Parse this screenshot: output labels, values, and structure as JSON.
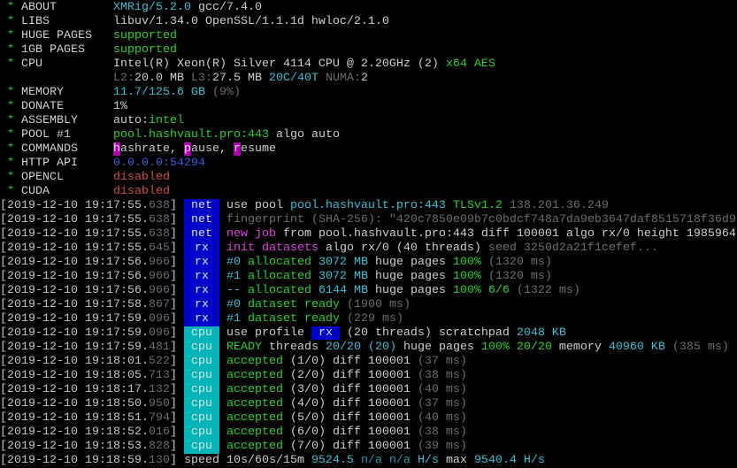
{
  "header": [
    {
      "label": "ABOUT",
      "segs": [
        [
          "XMRig/5.2.0",
          "c"
        ],
        [
          " gcc/7.4.0",
          "w"
        ]
      ]
    },
    {
      "label": "LIBS",
      "segs": [
        [
          "libuv/1.34.0 OpenSSL/1.1.1d hwloc/2.1.0",
          "w"
        ]
      ]
    },
    {
      "label": "HUGE PAGES",
      "segs": [
        [
          "supported",
          "g"
        ]
      ]
    },
    {
      "label": "1GB PAGES",
      "segs": [
        [
          "supported",
          "g"
        ]
      ]
    },
    {
      "label": "CPU",
      "segs": [
        [
          "Intel(R) Xeon(R) Silver 4114 CPU @ 2.20GHz (2) ",
          "w"
        ],
        [
          "x64 AES",
          "g"
        ]
      ]
    },
    {
      "label": "",
      "segs": [
        [
          "L2:",
          "y"
        ],
        [
          "20.0 MB ",
          "w"
        ],
        [
          "L3:",
          "y"
        ],
        [
          "27.5 MB ",
          "w"
        ],
        [
          "20C/40T ",
          "c"
        ],
        [
          "NUMA:",
          "y"
        ],
        [
          "2",
          "w"
        ]
      ]
    },
    {
      "label": "MEMORY",
      "segs": [
        [
          "11.7/125.6 GB ",
          "c"
        ],
        [
          "(9%)",
          "y"
        ]
      ]
    },
    {
      "label": "DONATE",
      "segs": [
        [
          "1%",
          "w"
        ]
      ]
    },
    {
      "label": "ASSEMBLY",
      "segs": [
        [
          "auto:",
          "w"
        ],
        [
          "intel",
          "g"
        ]
      ]
    },
    {
      "label": "POOL #1",
      "segs": [
        [
          "pool.hashvault.pro:443 ",
          "g"
        ],
        [
          "algo auto",
          "w"
        ]
      ]
    },
    {
      "label": "COMMANDS",
      "segs": [
        [
          "h",
          "hm"
        ],
        [
          "ashrate, ",
          "w"
        ],
        [
          "p",
          "hm"
        ],
        [
          "ause, ",
          "w"
        ],
        [
          "r",
          "hm"
        ],
        [
          "esume",
          "w"
        ]
      ]
    },
    {
      "label": "HTTP API",
      "segs": [
        [
          "0.0.0.0:54294",
          "b"
        ]
      ]
    },
    {
      "label": "OPENCL",
      "segs": [
        [
          "disabled",
          "r"
        ]
      ]
    },
    {
      "label": "CUDA",
      "segs": [
        [
          "disabled",
          "r"
        ]
      ]
    }
  ],
  "log": [
    {
      "ts": "2019-12-10 19:17:55",
      "ms": "638",
      "tag": "net",
      "segs": [
        [
          "use pool ",
          "w"
        ],
        [
          "pool.hashvault.pro:443 ",
          "c"
        ],
        [
          "TLSv1.2 ",
          "g"
        ],
        [
          "138.201.36.249",
          "y"
        ]
      ]
    },
    {
      "ts": "2019-12-10 19:17:55",
      "ms": "638",
      "tag": "net",
      "segs": [
        [
          "fingerprint (SHA-256): \"420c7850e09b7c0bdcf748a7da9eb3647daf8515718f36d9",
          "y"
        ]
      ]
    },
    {
      "ts": "2019-12-10 19:17:55",
      "ms": "638",
      "tag": "net",
      "segs": [
        [
          "new job",
          "m"
        ],
        [
          " from pool.hashvault.pro:443 diff 100001 algo rx/0 height 1985964",
          "w"
        ]
      ]
    },
    {
      "ts": "2019-12-10 19:17:55",
      "ms": "645",
      "tag": "rx",
      "segs": [
        [
          "init datasets",
          "m"
        ],
        [
          " algo rx/0 (40 threads) ",
          "w"
        ],
        [
          "seed 3250d2a21f1cefef...",
          "y"
        ]
      ]
    },
    {
      "ts": "2019-12-10 19:17:56",
      "ms": "966",
      "tag": "rx",
      "segs": [
        [
          "#0 ",
          "c"
        ],
        [
          "allocated ",
          "g"
        ],
        [
          "3072 MB ",
          "c"
        ],
        [
          "huge pages ",
          "w"
        ],
        [
          "100% ",
          "g"
        ],
        [
          "(1320 ms)",
          "y"
        ]
      ]
    },
    {
      "ts": "2019-12-10 19:17:56",
      "ms": "966",
      "tag": "rx",
      "segs": [
        [
          "#1 ",
          "c"
        ],
        [
          "allocated ",
          "g"
        ],
        [
          "3072 MB ",
          "c"
        ],
        [
          "huge pages ",
          "w"
        ],
        [
          "100% ",
          "g"
        ],
        [
          "(1320 ms)",
          "y"
        ]
      ]
    },
    {
      "ts": "2019-12-10 19:17:56",
      "ms": "966",
      "tag": "rx",
      "segs": [
        [
          "-- ",
          "c"
        ],
        [
          "allocated ",
          "g"
        ],
        [
          "6144 MB ",
          "c"
        ],
        [
          "huge pages ",
          "w"
        ],
        [
          "100% 6/6 ",
          "g"
        ],
        [
          "(1322 ms)",
          "y"
        ]
      ]
    },
    {
      "ts": "2019-12-10 19:17:58",
      "ms": "867",
      "tag": "rx",
      "segs": [
        [
          "#0 ",
          "c"
        ],
        [
          "dataset ready ",
          "g"
        ],
        [
          "(1900 ms)",
          "y"
        ]
      ]
    },
    {
      "ts": "2019-12-10 19:17:59",
      "ms": "096",
      "tag": "rx",
      "segs": [
        [
          "#1 ",
          "c"
        ],
        [
          "dataset ready ",
          "g"
        ],
        [
          "(229 ms)",
          "y"
        ]
      ]
    },
    {
      "ts": "2019-12-10 19:17:59",
      "ms": "096",
      "tag": "cpu",
      "segs": [
        [
          "use profile ",
          "w"
        ],
        [
          " rx ",
          "inv"
        ],
        [
          " (20 threads) scratchpad ",
          "w"
        ],
        [
          "2048 KB",
          "c"
        ]
      ]
    },
    {
      "ts": "2019-12-10 19:17:59",
      "ms": "481",
      "tag": "cpu",
      "segs": [
        [
          "READY ",
          "g"
        ],
        [
          "threads ",
          "w"
        ],
        [
          "20/20 (20) ",
          "c"
        ],
        [
          "huge pages ",
          "w"
        ],
        [
          "100% 20/20 ",
          "g"
        ],
        [
          "memory ",
          "w"
        ],
        [
          "40960 KB ",
          "c"
        ],
        [
          "(385 ms)",
          "y"
        ]
      ]
    },
    {
      "ts": "2019-12-10 19:18:01",
      "ms": "522",
      "tag": "cpu",
      "segs": [
        [
          "accepted ",
          "g"
        ],
        [
          "(1/0) diff 100001 ",
          "w"
        ],
        [
          "(37 ms)",
          "y"
        ]
      ]
    },
    {
      "ts": "2019-12-10 19:18:05",
      "ms": "713",
      "tag": "cpu",
      "segs": [
        [
          "accepted ",
          "g"
        ],
        [
          "(2/0) diff 100001 ",
          "w"
        ],
        [
          "(38 ms)",
          "y"
        ]
      ]
    },
    {
      "ts": "2019-12-10 19:18:17",
      "ms": "132",
      "tag": "cpu",
      "segs": [
        [
          "accepted ",
          "g"
        ],
        [
          "(3/0) diff 100001 ",
          "w"
        ],
        [
          "(40 ms)",
          "y"
        ]
      ]
    },
    {
      "ts": "2019-12-10 19:18:50",
      "ms": "950",
      "tag": "cpu",
      "segs": [
        [
          "accepted ",
          "g"
        ],
        [
          "(4/0) diff 100001 ",
          "w"
        ],
        [
          "(37 ms)",
          "y"
        ]
      ]
    },
    {
      "ts": "2019-12-10 19:18:51",
      "ms": "794",
      "tag": "cpu",
      "segs": [
        [
          "accepted ",
          "g"
        ],
        [
          "(5/0) diff 100001 ",
          "w"
        ],
        [
          "(40 ms)",
          "y"
        ]
      ]
    },
    {
      "ts": "2019-12-10 19:18:52",
      "ms": "016",
      "tag": "cpu",
      "segs": [
        [
          "accepted ",
          "g"
        ],
        [
          "(6/0) diff 100001 ",
          "w"
        ],
        [
          "(38 ms)",
          "y"
        ]
      ]
    },
    {
      "ts": "2019-12-10 19:18:53",
      "ms": "828",
      "tag": "cpu",
      "segs": [
        [
          "accepted ",
          "g"
        ],
        [
          "(7/0) diff 100001 ",
          "w"
        ],
        [
          "(39 ms)",
          "y"
        ]
      ]
    },
    {
      "ts": "2019-12-10 19:18:59",
      "ms": "130",
      "tag": "",
      "segs": [
        [
          "speed 10s/60s/15m ",
          "w"
        ],
        [
          "9524.5 ",
          "c"
        ],
        [
          "n/a n/a ",
          "t"
        ],
        [
          "H/s ",
          "c"
        ],
        [
          "max ",
          "w"
        ],
        [
          "9540.4 H/s",
          "c"
        ]
      ]
    }
  ]
}
